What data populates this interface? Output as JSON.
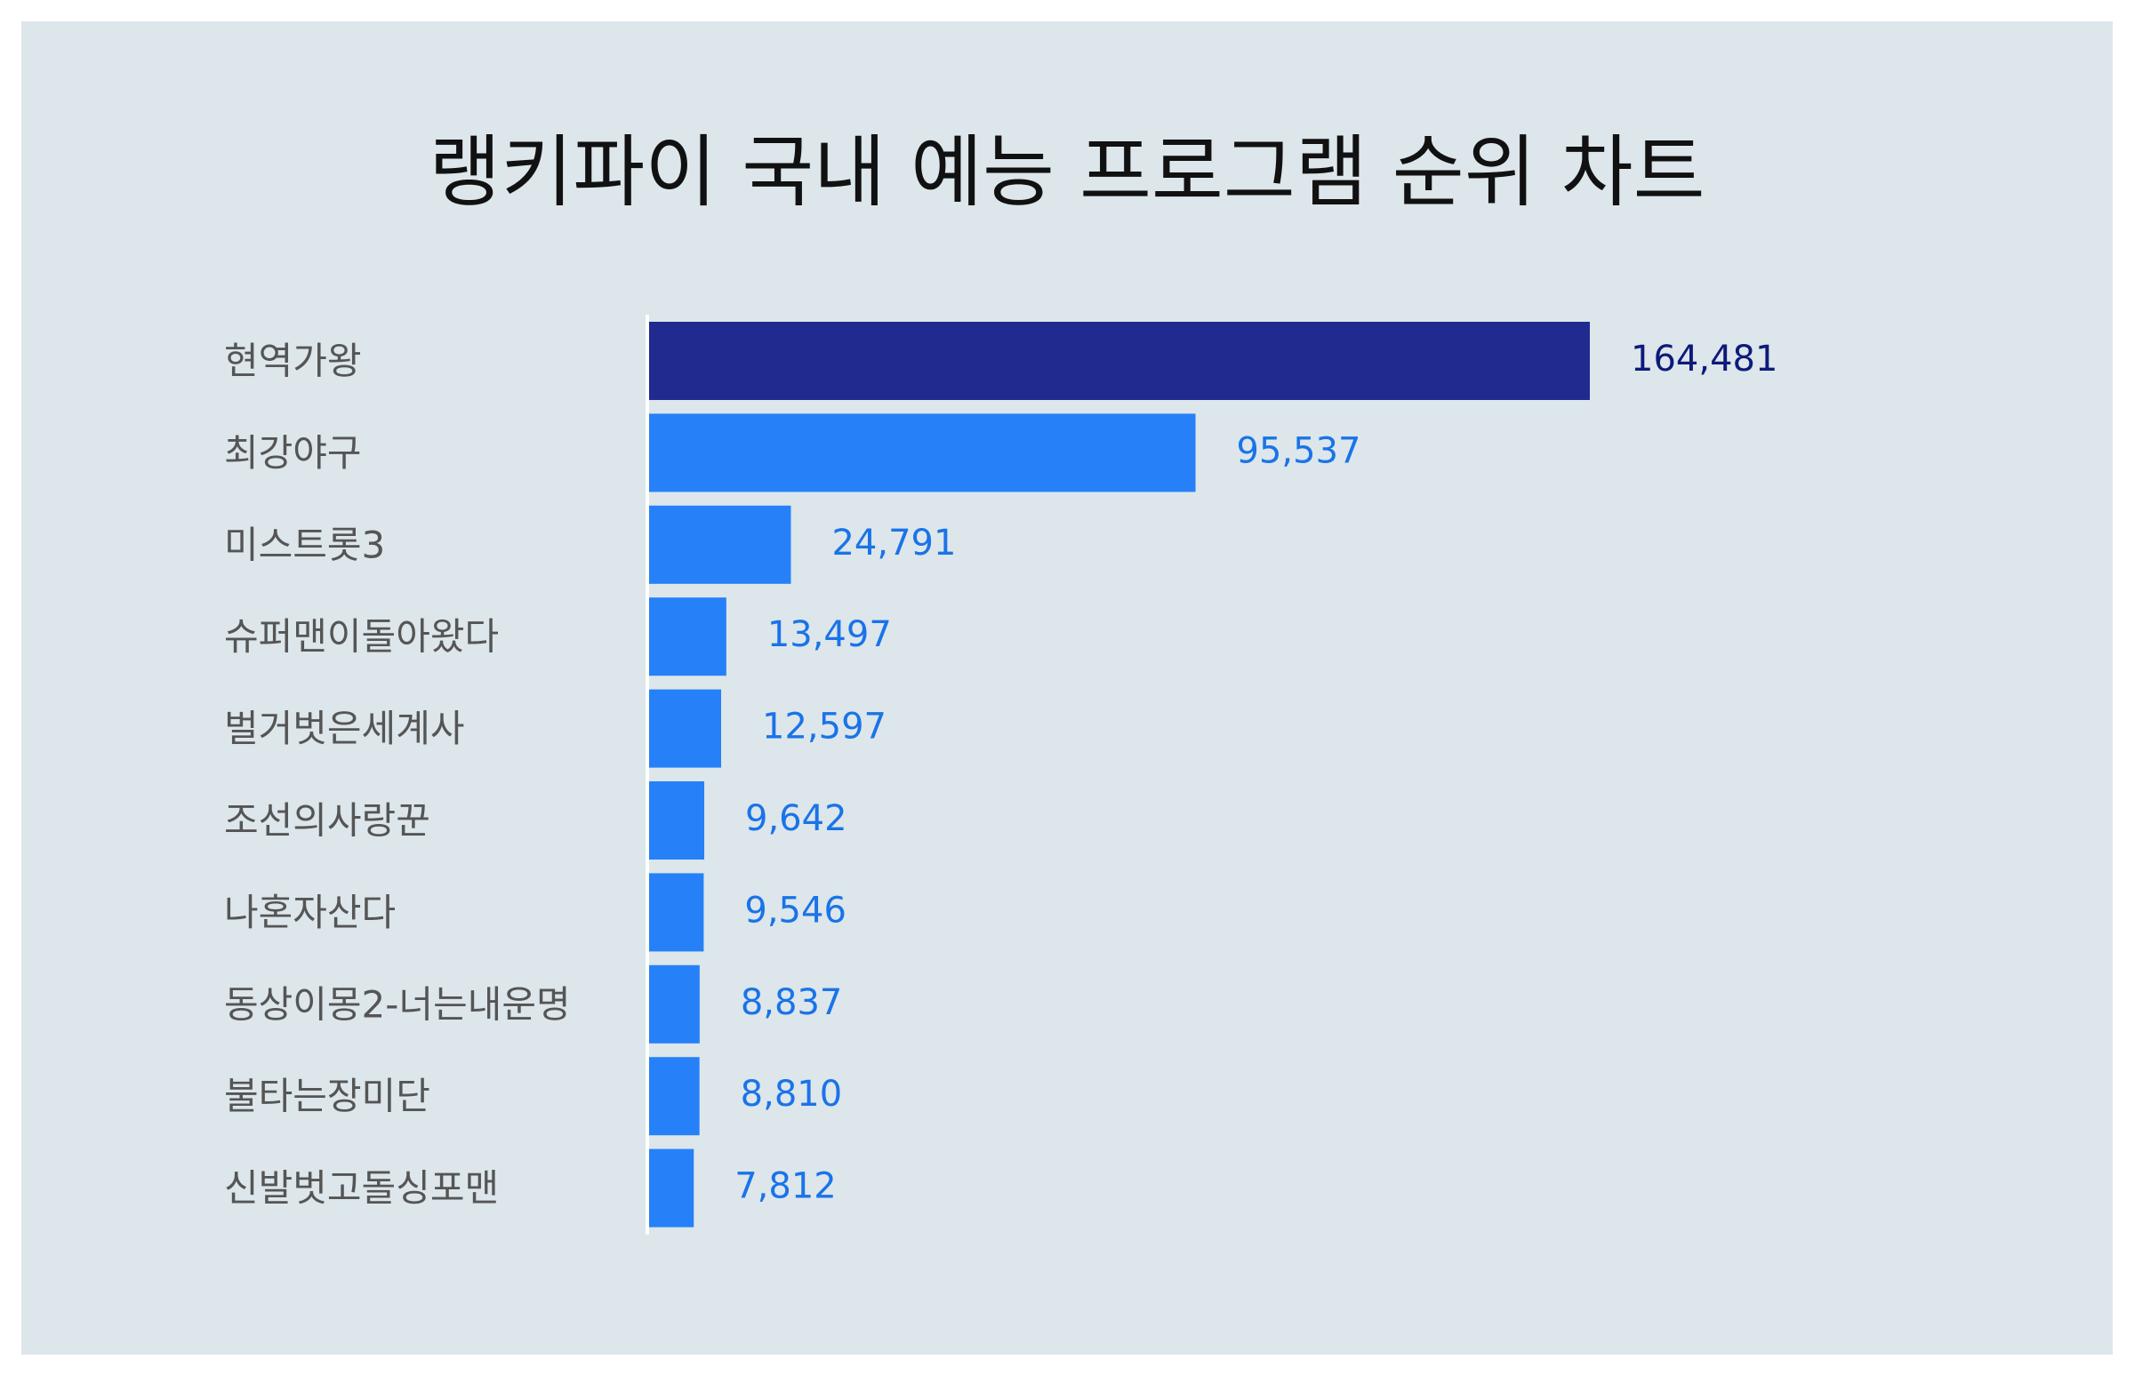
{
  "chart_data": {
    "type": "bar",
    "orientation": "horizontal",
    "title": "랭키파이 국내 예능 프로그램 순위 차트",
    "categories": [
      "현역가왕",
      "최강야구",
      "미스트롯3",
      "슈퍼맨이돌아왔다",
      "벌거벗은세계사",
      "조선의사랑꾼",
      "나혼자산다",
      "동상이몽2-너는내운명",
      "불타는장미단",
      "신발벗고돌싱포맨"
    ],
    "values": [
      164481,
      95537,
      24791,
      13497,
      12597,
      9642,
      9546,
      8837,
      8810,
      7812
    ],
    "value_labels": [
      "164,481",
      "95,537",
      "24,791",
      "13,497",
      "12,597",
      "9,642",
      "9,546",
      "8,837",
      "8,810",
      "7,812"
    ],
    "xlim": [
      0,
      164481
    ],
    "grid": false,
    "legend": "none",
    "colors": {
      "top_bar": "#212a8f",
      "bar": "#2680f8",
      "top_value_label": "#0d1a7a",
      "value_label": "#1a73e8",
      "category_label": "#555555",
      "axis_line": "#ffffff",
      "background": "#dce6eb",
      "title": "#111111"
    }
  }
}
